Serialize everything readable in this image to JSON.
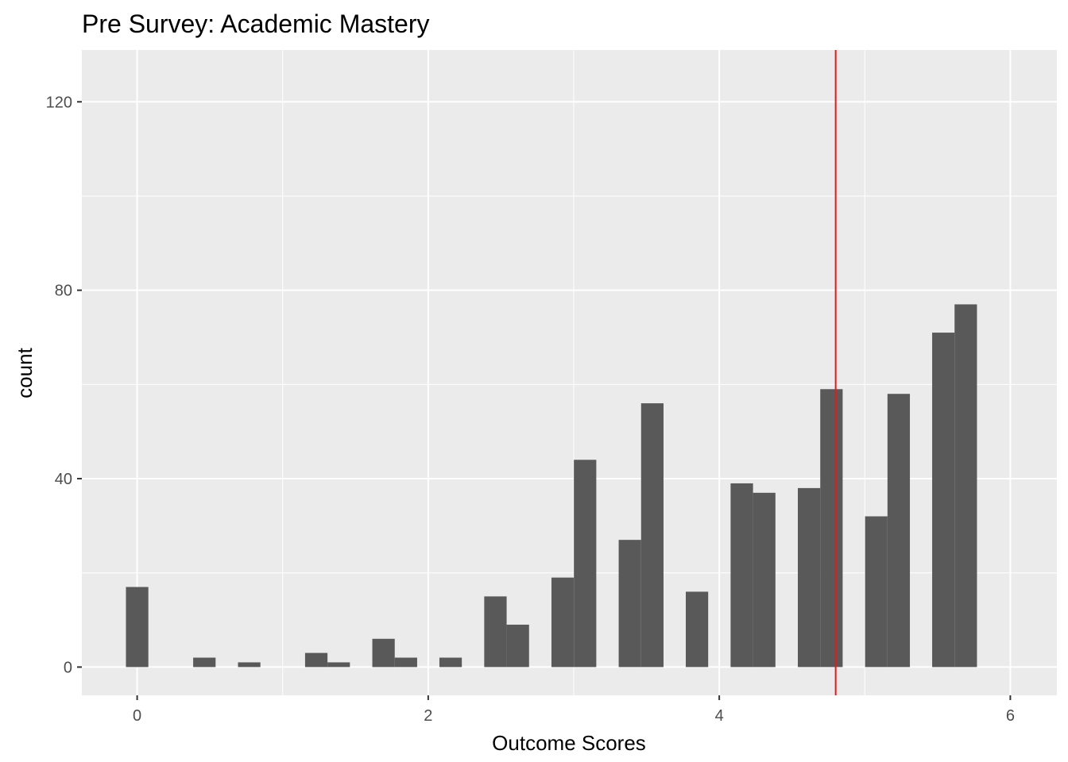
{
  "chart_data": {
    "type": "bar",
    "subtype": "histogram",
    "title": "Pre Survey: Academic Mastery",
    "xlabel": "Outcome Scores",
    "ylabel": "count",
    "xlim": [
      -0.38,
      6.32
    ],
    "ylim": [
      -6,
      131
    ],
    "x_ticks": [
      0,
      2,
      4,
      6
    ],
    "y_ticks": [
      0,
      40,
      80,
      120
    ],
    "x_tick_labels": [
      "0",
      "2",
      "4",
      "6"
    ],
    "y_tick_labels": [
      "0",
      "40",
      "80",
      "120"
    ],
    "bin_width": 0.154,
    "bins": [
      {
        "x": 0.0,
        "count": 17
      },
      {
        "x": 0.462,
        "count": 2
      },
      {
        "x": 0.77,
        "count": 1
      },
      {
        "x": 1.231,
        "count": 3
      },
      {
        "x": 1.385,
        "count": 1
      },
      {
        "x": 1.693,
        "count": 6
      },
      {
        "x": 1.847,
        "count": 2
      },
      {
        "x": 2.154,
        "count": 2
      },
      {
        "x": 2.462,
        "count": 15
      },
      {
        "x": 2.616,
        "count": 9
      },
      {
        "x": 2.924,
        "count": 19
      },
      {
        "x": 3.078,
        "count": 44
      },
      {
        "x": 3.386,
        "count": 27
      },
      {
        "x": 3.54,
        "count": 56
      },
      {
        "x": 3.847,
        "count": 16
      },
      {
        "x": 4.155,
        "count": 39
      },
      {
        "x": 4.309,
        "count": 37
      },
      {
        "x": 4.617,
        "count": 38
      },
      {
        "x": 4.771,
        "count": 59
      },
      {
        "x": 5.079,
        "count": 32
      },
      {
        "x": 5.233,
        "count": 58
      },
      {
        "x": 5.54,
        "count": 71
      },
      {
        "x": 5.694,
        "count": 77
      }
    ],
    "reference_line": {
      "x": 4.8,
      "color": "#e41a1c"
    },
    "colors": {
      "bar": "#595959",
      "panel": "#ebebeb",
      "grid": "#ffffff"
    },
    "grid": true,
    "legend": "none"
  }
}
